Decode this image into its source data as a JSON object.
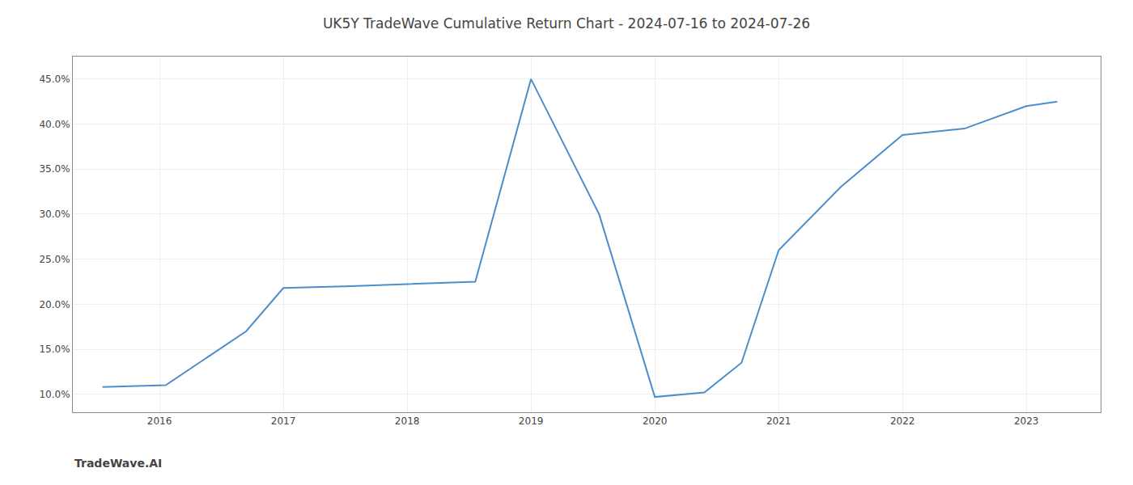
{
  "chart_data": {
    "type": "line",
    "title": "UK5Y TradeWave Cumulative Return Chart - 2024-07-16 to 2024-07-26",
    "annotations": [
      "TradeWave.AI"
    ],
    "x": [
      2015.54,
      2016.05,
      2016.7,
      2017.0,
      2017.55,
      2018.0,
      2018.55,
      2019.0,
      2019.55,
      2020.0,
      2020.4,
      2020.7,
      2021.0,
      2021.5,
      2022.0,
      2022.5,
      2023.0,
      2023.25
    ],
    "values": [
      10.8,
      11.0,
      17.0,
      21.8,
      22.0,
      22.2,
      22.5,
      45.0,
      30.0,
      9.7,
      10.2,
      13.5,
      26.0,
      33.0,
      38.8,
      39.5,
      42.0,
      42.5
    ],
    "color": "#4a8fcc",
    "xlim": [
      2015.3,
      2023.6
    ],
    "ylim": [
      8.0,
      47.5
    ],
    "xticks": [
      2016,
      2017,
      2018,
      2019,
      2020,
      2021,
      2022,
      2023
    ],
    "yticks": [
      {
        "value": 10.0,
        "label": "10.0%"
      },
      {
        "value": 15.0,
        "label": "15.0%"
      },
      {
        "value": 20.0,
        "label": "20.0%"
      },
      {
        "value": 25.0,
        "label": "25.0%"
      },
      {
        "value": 30.0,
        "label": "30.0%"
      },
      {
        "value": 35.0,
        "label": "35.0%"
      },
      {
        "value": 40.0,
        "label": "40.0%"
      },
      {
        "value": 45.0,
        "label": "45.0%"
      }
    ],
    "grid": true
  }
}
